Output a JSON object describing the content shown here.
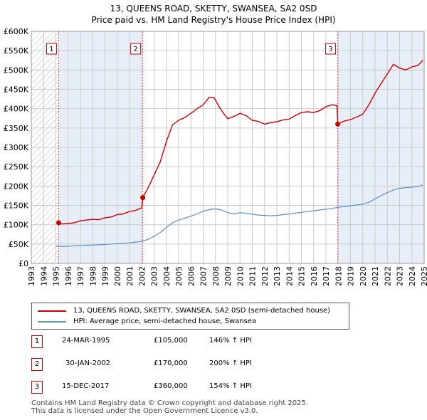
{
  "title_line1": "13, QUEENS ROAD, SKETTY, SWANSEA, SA2 0SD",
  "title_line2": "Price paid vs. HM Land Registry's House Price Index (HPI)",
  "legend": {
    "property": "13, QUEENS ROAD, SKETTY, SWANSEA, SA2 0SD (semi-detached house)",
    "hpi": "HPI: Average price, semi-detached house, Swansea"
  },
  "sales": [
    {
      "num": "1",
      "date": "24-MAR-1995",
      "price": "£105,000",
      "hpi_change": "146% ↑ HPI"
    },
    {
      "num": "2",
      "date": "30-JAN-2002",
      "price": "£170,000",
      "hpi_change": "200% ↑ HPI"
    },
    {
      "num": "3",
      "date": "15-DEC-2017",
      "price": "£360,000",
      "hpi_change": "154% ↑ HPI"
    }
  ],
  "footer": {
    "line1": "Contains HM Land Registry data © Crown copyright and database right 2025.",
    "line2": "This data is licensed under the Open Government Licence v3.0."
  },
  "colors": {
    "property": "#cc0000",
    "hpi": "#5b8ec9",
    "shade": "#e8eef8",
    "grid": "#cccccc",
    "marker_border": "#cc0000"
  },
  "chart_data": {
    "type": "line",
    "title": "13, QUEENS ROAD, SKETTY, SWANSEA, SA2 0SD — Price paid vs. HM Land Registry's House Price Index (HPI)",
    "xlabel": "",
    "ylabel": "",
    "xlim": [
      1993,
      2025
    ],
    "ylim": [
      0,
      600000
    ],
    "x_ticks": [
      1993,
      1994,
      1995,
      1996,
      1997,
      1998,
      1999,
      2000,
      2001,
      2002,
      2003,
      2004,
      2005,
      2006,
      2007,
      2008,
      2009,
      2010,
      2011,
      2012,
      2013,
      2014,
      2015,
      2016,
      2017,
      2018,
      2019,
      2020,
      2021,
      2022,
      2023,
      2024,
      2025
    ],
    "y_ticks": [
      {
        "value": 0,
        "label": "£0"
      },
      {
        "value": 50000,
        "label": "£50K"
      },
      {
        "value": 100000,
        "label": "£100K"
      },
      {
        "value": 150000,
        "label": "£150K"
      },
      {
        "value": 200000,
        "label": "£200K"
      },
      {
        "value": 250000,
        "label": "£250K"
      },
      {
        "value": 300000,
        "label": "£300K"
      },
      {
        "value": 350000,
        "label": "£350K"
      },
      {
        "value": 400000,
        "label": "£400K"
      },
      {
        "value": 450000,
        "label": "£450K"
      },
      {
        "value": 500000,
        "label": "£500K"
      },
      {
        "value": 550000,
        "label": "£550K"
      },
      {
        "value": 600000,
        "label": "£600K"
      }
    ],
    "grid": true,
    "hatched_range": [
      1993,
      1995.23
    ],
    "shaded_ranges": [
      [
        1995.23,
        2002.08
      ],
      [
        2017.96,
        2025
      ]
    ],
    "sale_markers": [
      {
        "label": "1",
        "x": 1995.23,
        "y": 105000
      },
      {
        "label": "2",
        "x": 2002.08,
        "y": 170000
      },
      {
        "label": "3",
        "x": 2017.96,
        "y": 360000
      }
    ],
    "series": [
      {
        "name": "13, QUEENS ROAD, SKETTY, SWANSEA, SA2 0SD (semi-detached house)",
        "x": [
          1995.23,
          1995.5,
          1996,
          1996.5,
          1997,
          1997.5,
          1998,
          1998.5,
          1999,
          1999.5,
          2000,
          2000.5,
          2001,
          2001.5,
          2002.0,
          2002.08,
          2002.5,
          2003,
          2003.5,
          2004,
          2004.5,
          2005,
          2005.5,
          2006,
          2006.5,
          2007,
          2007.5,
          2007.9,
          2008.3,
          2008.7,
          2009,
          2009.5,
          2010,
          2010.5,
          2011,
          2011.5,
          2012,
          2012.5,
          2013,
          2013.5,
          2014,
          2014.5,
          2015,
          2015.5,
          2016,
          2016.5,
          2017,
          2017.5,
          2017.9,
          2017.96,
          2018.5,
          2019,
          2019.5,
          2020,
          2020.5,
          2021,
          2021.5,
          2022,
          2022.5,
          2023,
          2023.5,
          2024,
          2024.5,
          2024.9
        ],
        "y": [
          105000,
          102000,
          103000,
          105000,
          110000,
          112000,
          114000,
          113000,
          118000,
          120000,
          126000,
          128000,
          134000,
          137000,
          144000,
          170000,
          195000,
          228000,
          262000,
          315000,
          358000,
          370000,
          377000,
          388000,
          400000,
          410000,
          430000,
          428000,
          405000,
          386000,
          374000,
          380000,
          388000,
          382000,
          370000,
          367000,
          360000,
          364000,
          366000,
          371000,
          373000,
          382000,
          390000,
          392000,
          390000,
          395000,
          405000,
          410000,
          408000,
          360000,
          368000,
          372000,
          378000,
          386000,
          410000,
          440000,
          465000,
          490000,
          515000,
          505000,
          500000,
          508000,
          512000,
          525000
        ]
      },
      {
        "name": "HPI: Average price, semi-detached house, Swansea",
        "x": [
          1995.0,
          1995.5,
          1996,
          1996.5,
          1997,
          1997.5,
          1998,
          1998.5,
          1999,
          1999.5,
          2000,
          2000.5,
          2001,
          2001.5,
          2002,
          2002.5,
          2003,
          2003.5,
          2004,
          2004.5,
          2005,
          2005.5,
          2006,
          2006.5,
          2007,
          2007.5,
          2008,
          2008.5,
          2009,
          2009.5,
          2010,
          2010.5,
          2011,
          2011.5,
          2012,
          2012.5,
          2013,
          2013.5,
          2014,
          2014.5,
          2015,
          2015.5,
          2016,
          2016.5,
          2017,
          2017.5,
          2018,
          2018.5,
          2019,
          2019.5,
          2020,
          2020.5,
          2021,
          2021.5,
          2022,
          2022.5,
          2023,
          2023.5,
          2024,
          2024.5,
          2024.9
        ],
        "y": [
          44000,
          43500,
          44500,
          45500,
          46500,
          47000,
          47500,
          48000,
          49000,
          50000,
          51000,
          52000,
          53000,
          55000,
          57000,
          62000,
          70000,
          80000,
          93000,
          105000,
          112000,
          117000,
          122000,
          128000,
          135000,
          139000,
          141000,
          138000,
          131000,
          128000,
          131000,
          130000,
          127000,
          125000,
          124000,
          123000,
          124000,
          126000,
          128000,
          130000,
          132000,
          134000,
          136000,
          138000,
          140000,
          142000,
          145000,
          147000,
          149000,
          151000,
          153000,
          158000,
          167000,
          175000,
          183000,
          190000,
          194000,
          196000,
          197000,
          199000,
          203000
        ]
      }
    ]
  }
}
